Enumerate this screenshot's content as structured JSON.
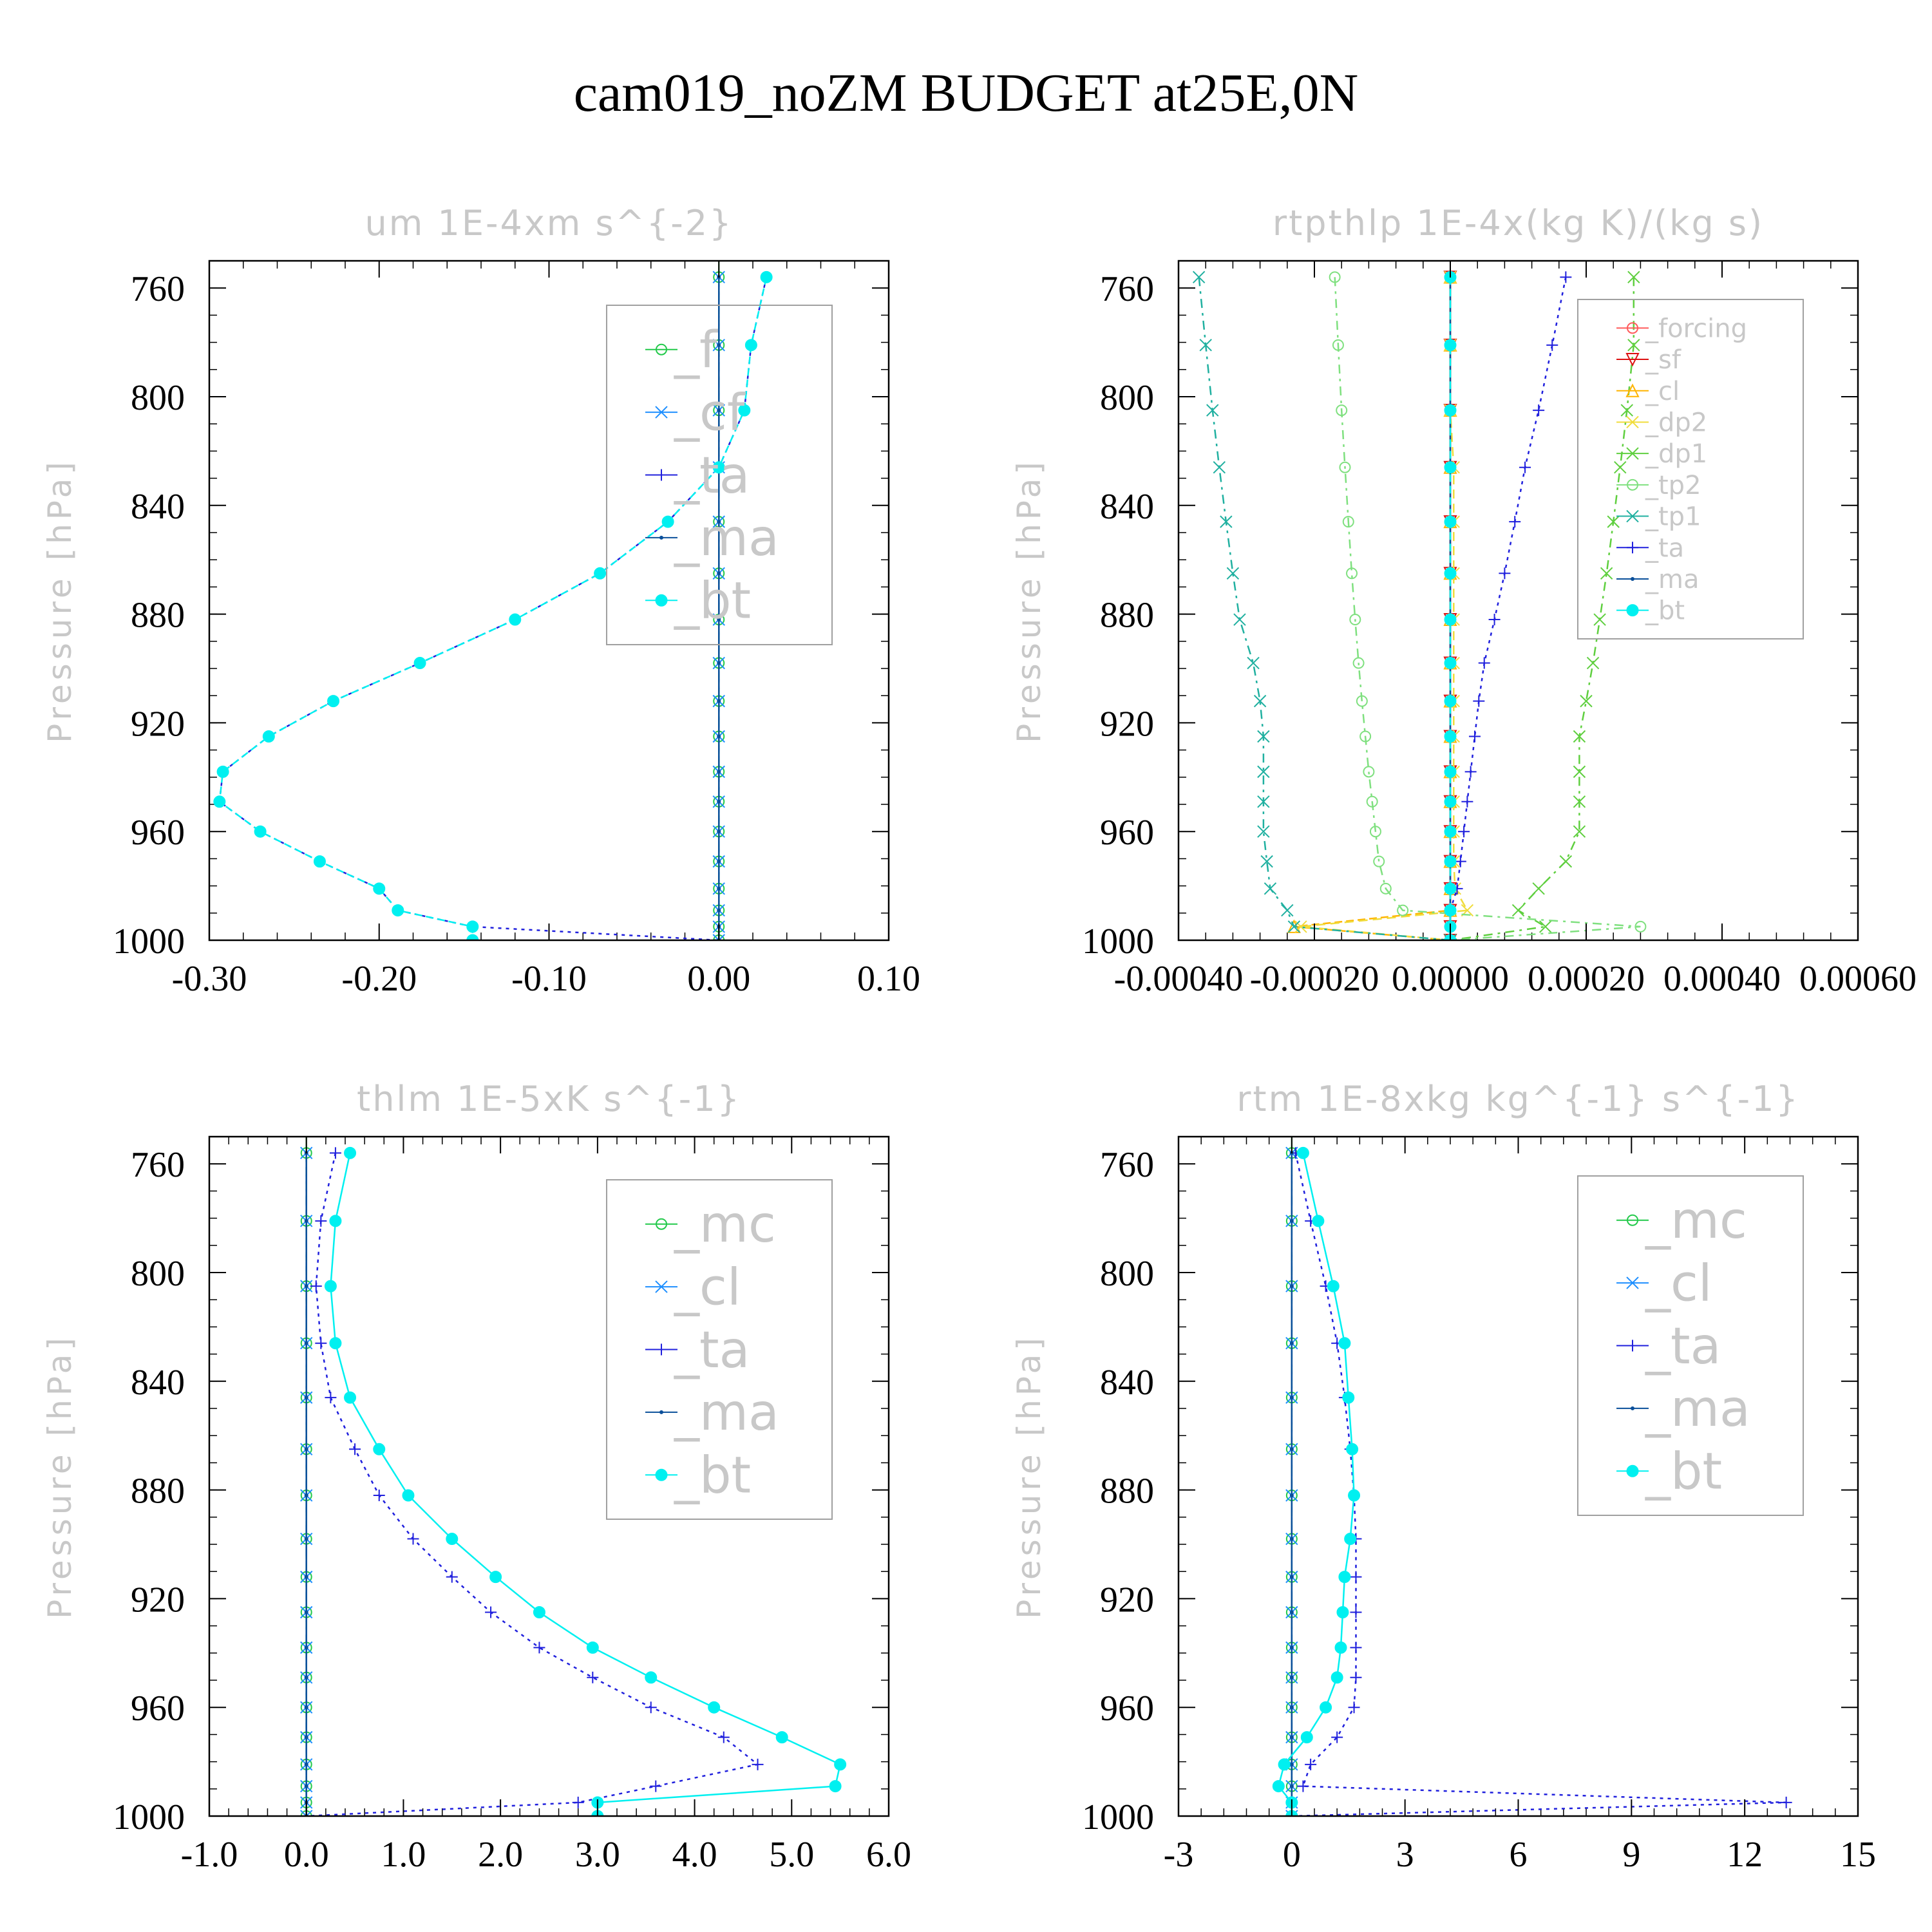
{
  "title": "cam019_noZM  BUDGET at25E,0N",
  "colors": {
    "f": "#22c94a",
    "cf": "#1e8fff",
    "ta": "#2020dd",
    "ma": "#0a4f9a",
    "bt": "#00f0f0",
    "forcing": "#ff5a5a",
    "sf": "#dd1111",
    "cl": "#ffb400",
    "dp2": "#f0dc3c",
    "dp1": "#5fcf3f",
    "tp2": "#7fe07f",
    "tp1": "#20b0a0",
    "mc": "#22c94a",
    "cl_cs": "#1e8fff",
    "frame": "#000000",
    "zero": "#008c00"
  },
  "chart_data": [
    {
      "type": "line",
      "title": "um   1E-4xm s^{-2}",
      "ylabel": "Pressure [hPa]",
      "xlim": [
        -0.3,
        0.1
      ],
      "ylim": [
        750,
        1000
      ],
      "y_reversed": true,
      "xticks": [
        -0.3,
        -0.2,
        -0.1,
        0.0,
        0.1
      ],
      "xtick_labels": [
        "-0.30",
        "-0.20",
        "-0.10",
        "0.00",
        "0.10"
      ],
      "yticks": [
        760,
        800,
        840,
        880,
        920,
        960,
        1000
      ],
      "ytick_labels": [
        "760",
        "800",
        "840",
        "880",
        "920",
        "960",
        "1000"
      ],
      "legend": {
        "placement": "top-right",
        "font_size": 78,
        "entries": [
          "_f",
          "_cf",
          "_ta",
          "_ma",
          "_bt"
        ]
      },
      "y": [
        756,
        781,
        805,
        826,
        846,
        865,
        882,
        898,
        912,
        925,
        938,
        949,
        960,
        971,
        981,
        989,
        995,
        1000
      ],
      "series": [
        {
          "key": "f",
          "style": "ring",
          "dash": "14,8",
          "values": [
            0,
            0,
            0,
            0,
            0,
            0,
            0,
            0,
            0,
            0,
            0,
            0,
            0,
            0,
            0,
            0,
            0,
            0
          ]
        },
        {
          "key": "cf",
          "style": "x",
          "dash": "4,8",
          "values": [
            0,
            0,
            0,
            0,
            0,
            0,
            0,
            0,
            0,
            0,
            0,
            0,
            0,
            0,
            0,
            0,
            0,
            0
          ]
        },
        {
          "key": "ta",
          "style": "plus",
          "dash": "5,7",
          "values": [
            0.028,
            0.019,
            0.015,
            0.0,
            -0.03,
            -0.07,
            -0.12,
            -0.176,
            -0.227,
            -0.265,
            -0.292,
            -0.294,
            -0.27,
            -0.235,
            -0.2,
            -0.189,
            -0.145,
            0.0
          ]
        },
        {
          "key": "ma",
          "style": "dot",
          "dash": "",
          "values": [
            0,
            0,
            0,
            0,
            0,
            0,
            0,
            0,
            0,
            0,
            0,
            0,
            0,
            0,
            0,
            0,
            0,
            0
          ]
        },
        {
          "key": "bt",
          "style": "filled",
          "dash": "12,6",
          "values": [
            0.028,
            0.019,
            0.015,
            0.0,
            -0.03,
            -0.07,
            -0.12,
            -0.176,
            -0.227,
            -0.265,
            -0.292,
            -0.294,
            -0.27,
            -0.235,
            -0.2,
            -0.189,
            -0.145,
            -0.145
          ]
        }
      ]
    },
    {
      "type": "line",
      "title": "rtpthlp   1E-4x(kg K)/(kg s)",
      "ylabel": "Pressure [hPa]",
      "xlim": [
        -0.0004,
        0.0006
      ],
      "ylim": [
        750,
        1000
      ],
      "y_reversed": true,
      "xticks": [
        -0.0004,
        -0.0002,
        0.0,
        0.0002,
        0.0004,
        0.0006
      ],
      "xtick_labels": [
        "-0.00040",
        "-0.00020",
        "0.00000",
        "0.00020",
        "0.00040",
        "0.00060"
      ],
      "yticks": [
        760,
        800,
        840,
        880,
        920,
        960,
        1000
      ],
      "ytick_labels": [
        "760",
        "800",
        "840",
        "880",
        "920",
        "960",
        "1000"
      ],
      "legend": {
        "placement": "top-right",
        "font_size": 40,
        "entries": [
          "_forcing",
          "_sf",
          "_cl",
          "_dp2",
          "_dp1",
          "_tp2",
          "_tp1",
          "_ta",
          "_ma",
          "_bt"
        ]
      },
      "y": [
        756,
        781,
        805,
        826,
        846,
        865,
        882,
        898,
        912,
        925,
        938,
        949,
        960,
        971,
        981,
        989,
        995,
        1000
      ],
      "series": [
        {
          "key": "forcing",
          "style": "ring",
          "dash": "",
          "values": [
            0,
            0,
            0,
            0,
            0,
            0,
            0,
            0,
            0,
            0,
            0,
            0,
            0,
            0,
            0,
            0,
            0,
            0
          ]
        },
        {
          "key": "sf",
          "style": "tri-down",
          "dash": "",
          "values": [
            0,
            0,
            0,
            0,
            0,
            0,
            0,
            0,
            0,
            0,
            0,
            0,
            0,
            0,
            0,
            0,
            0,
            0
          ]
        },
        {
          "key": "cl",
          "style": "tri-up",
          "dash": "12,6",
          "values": [
            0,
            0,
            0,
            0,
            0,
            0,
            0,
            0,
            0,
            0,
            0,
            0,
            0,
            0,
            0,
            0,
            -0.00023,
            0
          ]
        },
        {
          "key": "dp2",
          "style": "x",
          "dash": "14,8",
          "values": [
            0,
            0,
            0,
            5e-06,
            5e-06,
            5e-06,
            5e-06,
            5e-06,
            5e-06,
            5e-06,
            5e-06,
            5e-06,
            5e-06,
            5e-06,
            7e-06,
            2.5e-05,
            -0.00022,
            0
          ]
        },
        {
          "key": "dp1",
          "style": "x",
          "dash": "14,8,4,8",
          "values": [
            0.00027,
            0.00027,
            0.00026,
            0.00025,
            0.00024,
            0.00023,
            0.00022,
            0.00021,
            0.0002,
            0.00019,
            0.00019,
            0.00019,
            0.00019,
            0.00017,
            0.00013,
            0.0001,
            0.00014,
            0.0
          ]
        },
        {
          "key": "tp2",
          "style": "ring",
          "dash": "14,8,4,8",
          "values": [
            -0.00017,
            -0.000165,
            -0.00016,
            -0.000155,
            -0.00015,
            -0.000145,
            -0.00014,
            -0.000135,
            -0.00013,
            -0.000125,
            -0.00012,
            -0.000115,
            -0.00011,
            -0.000105,
            -9.5e-05,
            -7e-05,
            0.00028,
            0.0
          ]
        },
        {
          "key": "tp1",
          "style": "x",
          "dash": "14,8,4,8",
          "values": [
            -0.00037,
            -0.00036,
            -0.00035,
            -0.00034,
            -0.00033,
            -0.00032,
            -0.00031,
            -0.00029,
            -0.00028,
            -0.000275,
            -0.000275,
            -0.000275,
            -0.000275,
            -0.00027,
            -0.000265,
            -0.00024,
            -0.00023,
            0.0
          ]
        },
        {
          "key": "ta",
          "style": "plus",
          "dash": "5,7",
          "values": [
            0.00017,
            0.00015,
            0.00013,
            0.00011,
            9.5e-05,
            8e-05,
            6.5e-05,
            5e-05,
            4.2e-05,
            3.6e-05,
            3e-05,
            2.5e-05,
            2e-05,
            1.5e-05,
            1e-05,
            0.0,
            0.0,
            0.0
          ]
        },
        {
          "key": "ma",
          "style": "dot",
          "dash": "",
          "values": [
            0,
            0,
            0,
            0,
            0,
            0,
            0,
            0,
            0,
            0,
            0,
            0,
            0,
            0,
            0,
            0,
            0,
            0
          ]
        },
        {
          "key": "bt",
          "style": "filled",
          "dash": "12,6",
          "values": [
            0,
            0,
            0,
            0,
            0,
            0,
            0,
            0,
            0,
            0,
            0,
            0,
            0,
            0,
            0,
            0,
            0,
            0
          ]
        }
      ]
    },
    {
      "type": "line",
      "title": "thlm   1E-5xK s^{-1}",
      "ylabel": "Pressure [hPa]",
      "xlim": [
        -1.0,
        6.0
      ],
      "ylim": [
        750,
        1000
      ],
      "y_reversed": true,
      "xticks": [
        -1.0,
        0.0,
        1.0,
        2.0,
        3.0,
        4.0,
        5.0,
        6.0
      ],
      "xtick_labels": [
        "-1.0",
        "0.0",
        "1.0",
        "2.0",
        "3.0",
        "4.0",
        "5.0",
        "6.0"
      ],
      "yticks": [
        760,
        800,
        840,
        880,
        920,
        960,
        1000
      ],
      "ytick_labels": [
        "760",
        "800",
        "840",
        "880",
        "920",
        "960",
        "1000"
      ],
      "legend": {
        "placement": "top-right",
        "font_size": 78,
        "entries": [
          "_mc",
          "_cl",
          "_ta",
          "_ma",
          "_bt"
        ]
      },
      "y": [
        756,
        781,
        805,
        826,
        846,
        865,
        882,
        898,
        912,
        925,
        938,
        949,
        960,
        971,
        981,
        989,
        995,
        1000
      ],
      "series": [
        {
          "key": "mc",
          "style": "ring",
          "dash": "14,8",
          "values": [
            0,
            0,
            0,
            0,
            0,
            0,
            0,
            0,
            0,
            0,
            0,
            0,
            0,
            0,
            0,
            0,
            0,
            0
          ]
        },
        {
          "key": "cl_cs",
          "style": "x",
          "dash": "14,8,4,8",
          "values": [
            0,
            0,
            0,
            0,
            0,
            0,
            0,
            0,
            0,
            0,
            0,
            0,
            0,
            0,
            0,
            0,
            0,
            0
          ]
        },
        {
          "key": "ta",
          "style": "plus",
          "dash": "5,7",
          "values": [
            0.3,
            0.15,
            0.1,
            0.15,
            0.25,
            0.5,
            0.75,
            1.1,
            1.5,
            1.9,
            2.4,
            2.95,
            3.55,
            4.3,
            4.65,
            3.6,
            2.8,
            0.0
          ]
        },
        {
          "key": "ma",
          "style": "dot",
          "dash": "",
          "values": [
            0,
            0,
            0,
            0,
            0,
            0,
            0,
            0,
            0,
            0,
            0,
            0,
            0,
            0,
            0,
            0,
            0,
            0
          ]
        },
        {
          "key": "bt",
          "style": "filled",
          "dash": "",
          "values": [
            0.45,
            0.3,
            0.25,
            0.3,
            0.45,
            0.75,
            1.05,
            1.5,
            1.95,
            2.4,
            2.95,
            3.55,
            4.2,
            4.9,
            5.5,
            5.45,
            3.0,
            3.0
          ]
        }
      ]
    },
    {
      "type": "line",
      "title": "rtm   1E-8xkg kg^{-1} s^{-1}",
      "ylabel": "Pressure [hPa]",
      "xlim": [
        -3,
        15
      ],
      "ylim": [
        750,
        1000
      ],
      "y_reversed": true,
      "xticks": [
        -3,
        0,
        3,
        6,
        9,
        12,
        15
      ],
      "xtick_labels": [
        "-3",
        "0",
        "3",
        "6",
        "9",
        "12",
        "15"
      ],
      "yticks": [
        760,
        800,
        840,
        880,
        920,
        960,
        1000
      ],
      "ytick_labels": [
        "760",
        "800",
        "840",
        "880",
        "920",
        "960",
        "1000"
      ],
      "legend": {
        "placement": "top-right",
        "font_size": 78,
        "entries": [
          "_mc",
          "_cl",
          "_ta",
          "_ma",
          "_bt"
        ]
      },
      "y": [
        756,
        781,
        805,
        826,
        846,
        865,
        882,
        898,
        912,
        925,
        938,
        949,
        960,
        971,
        981,
        989,
        995,
        1000
      ],
      "series": [
        {
          "key": "mc",
          "style": "ring",
          "dash": "14,8",
          "values": [
            0,
            0,
            0,
            0,
            0,
            0,
            0,
            0,
            0,
            0,
            0,
            0,
            0,
            0,
            0,
            0,
            0,
            0
          ]
        },
        {
          "key": "cl_cs",
          "style": "x",
          "dash": "14,8,4,8",
          "values": [
            0,
            0,
            0,
            0,
            0,
            0,
            0,
            0,
            0,
            0,
            0,
            0,
            0,
            0,
            0,
            0,
            0,
            0
          ]
        },
        {
          "key": "ta",
          "style": "plus",
          "dash": "5,7",
          "values": [
            0.1,
            0.5,
            0.9,
            1.2,
            1.4,
            1.55,
            1.65,
            1.7,
            1.7,
            1.7,
            1.7,
            1.7,
            1.65,
            1.2,
            0.5,
            0.3,
            13.1,
            0.0
          ]
        },
        {
          "key": "ma",
          "style": "dot",
          "dash": "",
          "values": [
            0,
            0,
            0,
            0,
            0,
            0,
            0,
            0,
            0,
            0,
            0,
            0,
            0,
            0,
            0,
            0,
            0,
            0
          ]
        },
        {
          "key": "bt",
          "style": "filled",
          "dash": "",
          "values": [
            0.3,
            0.7,
            1.1,
            1.4,
            1.5,
            1.6,
            1.65,
            1.55,
            1.4,
            1.35,
            1.3,
            1.2,
            0.9,
            0.4,
            -0.2,
            -0.35,
            0.0,
            0.0
          ]
        }
      ]
    }
  ]
}
